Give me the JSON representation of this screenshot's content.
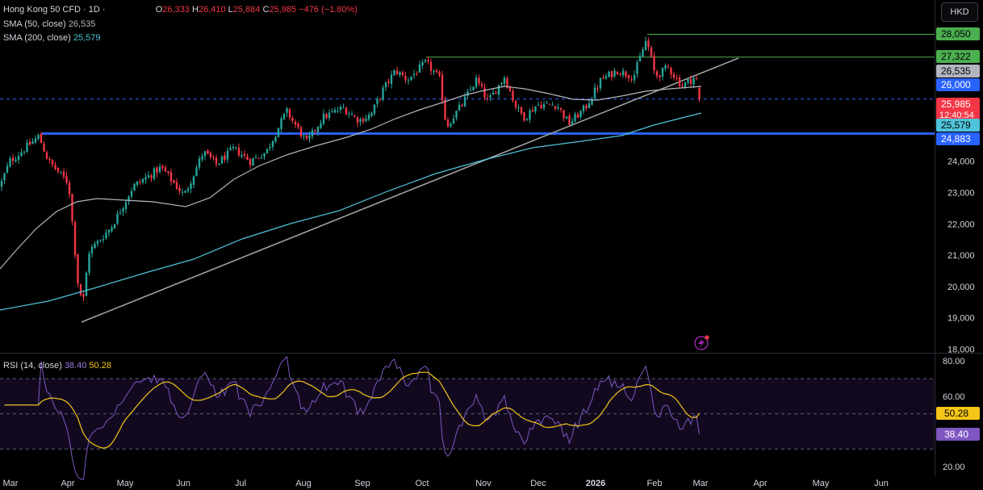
{
  "header": {
    "symbol": "Hong Kong 50 CFD · 1D ·",
    "o_label": "O",
    "o_val": "26,333",
    "h_label": "H",
    "h_val": "26,410",
    "l_label": "L",
    "l_val": "25,884",
    "c_label": "C",
    "c_val": "25,985",
    "change": "−476 (−1.80%)",
    "currency_button": "HKD"
  },
  "indicators": {
    "sma50_label": "SMA (50, close)",
    "sma50_val": "26,535",
    "sma200_label": "SMA (200, close)",
    "sma200_val": "25,579",
    "rsi_label": "RSI (14, close)",
    "rsi_val": "38.40",
    "rsi_ma_val": "50.28"
  },
  "colors": {
    "up": "#26a69a",
    "down": "#f23645",
    "sma50": "#b2b5be",
    "sma200": "#4fc3d9",
    "rsi": "#7e57c2",
    "rsi_ma": "#f5c518",
    "level_green": "#4caf50",
    "level_blue": "#2962ff",
    "trendline": "#9e9e9e"
  },
  "price_badges": [
    {
      "value": "28,050",
      "bg": "#4caf50",
      "fg": "#000000"
    },
    {
      "value": "27,322",
      "bg": "#4caf50",
      "fg": "#000000"
    },
    {
      "value": "26,535",
      "bg": "#b2b5be",
      "fg": "#000000"
    },
    {
      "value": "26,000",
      "bg": "#2962ff",
      "fg": "#ffffff"
    },
    {
      "value": "25,985",
      "sub": "12:40:54",
      "bg": "#f23645",
      "fg": "#ffffff"
    },
    {
      "value": "25,579",
      "bg": "#4fc3d9",
      "fg": "#000000"
    },
    {
      "value": "24,883",
      "bg": "#2962ff",
      "fg": "#ffffff"
    }
  ],
  "rsi_badges": [
    {
      "value": "50.28",
      "bg": "#f5c518",
      "fg": "#000000"
    },
    {
      "value": "38.40",
      "bg": "#7e57c2",
      "fg": "#ffffff"
    }
  ],
  "chart_data": {
    "type": "candlestick",
    "title": "Hong Kong 50 CFD · 1D",
    "x_labels": [
      "Mar",
      "Apr",
      "May",
      "Jun",
      "Jul",
      "Aug",
      "Sep",
      "Oct",
      "Nov",
      "Dec",
      "2026",
      "Feb",
      "Mar",
      "Apr",
      "May",
      "Jun"
    ],
    "y_ticks": [
      18000,
      19000,
      20000,
      21000,
      22000,
      23000,
      24000
    ],
    "y_tick_labels": [
      "18,000",
      "19,000",
      "20,000",
      "21,000",
      "22,000",
      "23,000",
      "24,000"
    ],
    "ylim": [
      18000,
      28800
    ],
    "last_ohlc": {
      "open": 26333,
      "high": 26410,
      "low": 25884,
      "close": 25985,
      "change": -476,
      "change_pct": -1.8
    },
    "series": [
      {
        "name": "SMA (50, close)",
        "last": 26535
      },
      {
        "name": "SMA (200, close)",
        "last": 25579
      }
    ],
    "close_path": [
      [
        "Mar",
        23200
      ],
      [
        "Mar",
        24000
      ],
      [
        "Mar",
        24800
      ],
      [
        "Apr",
        23300
      ],
      [
        "Apr",
        19800
      ],
      [
        "Apr",
        21100
      ],
      [
        "May",
        22400
      ],
      [
        "May",
        23200
      ],
      [
        "Jun",
        23700
      ],
      [
        "Jun",
        24100
      ],
      [
        "Jul",
        24200
      ],
      [
        "Jul",
        24600
      ],
      [
        "Aug",
        25200
      ],
      [
        "Aug",
        25000
      ],
      [
        "Sep",
        25600
      ],
      [
        "Sep",
        26300
      ],
      [
        "Oct",
        26700
      ],
      [
        "Oct",
        26000
      ],
      [
        "Nov",
        26600
      ],
      [
        "Nov",
        25700
      ],
      [
        "Dec",
        25800
      ],
      [
        "Dec",
        25500
      ],
      [
        "2026",
        26400
      ],
      [
        "2026",
        26900
      ],
      [
        "Feb",
        27800
      ],
      [
        "Feb",
        27100
      ],
      [
        "Mar",
        25985
      ]
    ],
    "levels": [
      {
        "value": 28050,
        "color": "green"
      },
      {
        "value": 27322,
        "color": "green"
      },
      {
        "value": 24883,
        "color": "blue"
      }
    ],
    "rsi": {
      "name": "RSI (14, close)",
      "y_ticks": [
        20,
        60,
        80
      ],
      "y_tick_labels": [
        "20.00",
        "60.00",
        "80.00"
      ],
      "bands": [
        30,
        50,
        70
      ],
      "ylim": [
        15,
        85
      ],
      "last": 38.4,
      "ma_last": 50.28
    }
  }
}
